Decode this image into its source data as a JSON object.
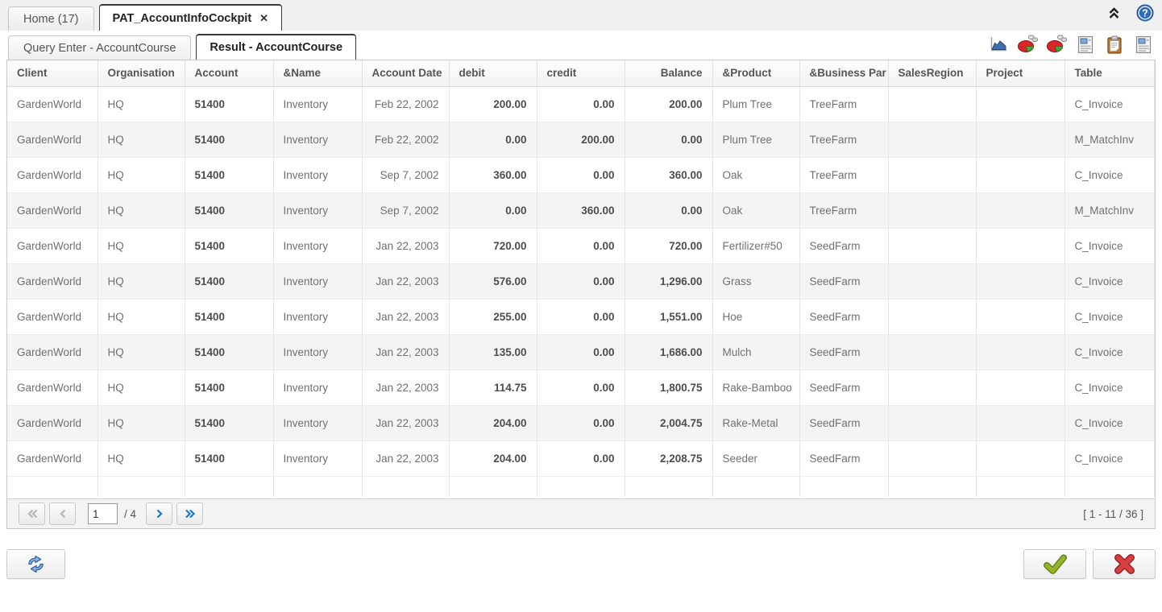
{
  "window_tabs": {
    "home": {
      "label": "Home (17)"
    },
    "active": {
      "label": "PAT_AccountInfoCockpit",
      "close_glyph": "✕"
    }
  },
  "header_icons": {
    "help_glyph": "?"
  },
  "sub_tabs": {
    "query": {
      "label": "Query Enter - AccountCourse"
    },
    "result": {
      "label": "Result - AccountCourse"
    }
  },
  "toolbar_icons": [
    {
      "name": "area-chart-icon"
    },
    {
      "name": "pie-chart-icon"
    },
    {
      "name": "pie-chart-2-icon"
    },
    {
      "name": "report-icon"
    },
    {
      "name": "clipboard-icon"
    },
    {
      "name": "report-2-icon"
    }
  ],
  "table": {
    "columns": [
      {
        "label": "Client"
      },
      {
        "label": "Organisation"
      },
      {
        "label": "Account"
      },
      {
        "label": "&Name"
      },
      {
        "label": "Account Date"
      },
      {
        "label": "debit"
      },
      {
        "label": "credit"
      },
      {
        "label": "Balance"
      },
      {
        "label": "&Product"
      },
      {
        "label": "&Business Par"
      },
      {
        "label": "SalesRegion"
      },
      {
        "label": "Project"
      },
      {
        "label": "Table"
      }
    ],
    "rows": [
      [
        "GardenWorld",
        "HQ",
        "51400",
        "Inventory",
        "Feb 22, 2002",
        "200.00",
        "0.00",
        "200.00",
        "Plum Tree",
        "TreeFarm",
        "",
        "",
        "C_Invoice"
      ],
      [
        "GardenWorld",
        "HQ",
        "51400",
        "Inventory",
        "Feb 22, 2002",
        "0.00",
        "200.00",
        "0.00",
        "Plum Tree",
        "TreeFarm",
        "",
        "",
        "M_MatchInv"
      ],
      [
        "GardenWorld",
        "HQ",
        "51400",
        "Inventory",
        "Sep 7, 2002",
        "360.00",
        "0.00",
        "360.00",
        "Oak",
        "TreeFarm",
        "",
        "",
        "C_Invoice"
      ],
      [
        "GardenWorld",
        "HQ",
        "51400",
        "Inventory",
        "Sep 7, 2002",
        "0.00",
        "360.00",
        "0.00",
        "Oak",
        "TreeFarm",
        "",
        "",
        "M_MatchInv"
      ],
      [
        "GardenWorld",
        "HQ",
        "51400",
        "Inventory",
        "Jan 22, 2003",
        "720.00",
        "0.00",
        "720.00",
        "Fertilizer#50",
        "SeedFarm",
        "",
        "",
        "C_Invoice"
      ],
      [
        "GardenWorld",
        "HQ",
        "51400",
        "Inventory",
        "Jan 22, 2003",
        "576.00",
        "0.00",
        "1,296.00",
        "Grass",
        "SeedFarm",
        "",
        "",
        "C_Invoice"
      ],
      [
        "GardenWorld",
        "HQ",
        "51400",
        "Inventory",
        "Jan 22, 2003",
        "255.00",
        "0.00",
        "1,551.00",
        "Hoe",
        "SeedFarm",
        "",
        "",
        "C_Invoice"
      ],
      [
        "GardenWorld",
        "HQ",
        "51400",
        "Inventory",
        "Jan 22, 2003",
        "135.00",
        "0.00",
        "1,686.00",
        "Mulch",
        "SeedFarm",
        "",
        "",
        "C_Invoice"
      ],
      [
        "GardenWorld",
        "HQ",
        "51400",
        "Inventory",
        "Jan 22, 2003",
        "114.75",
        "0.00",
        "1,800.75",
        "Rake-Bamboo",
        "SeedFarm",
        "",
        "",
        "C_Invoice"
      ],
      [
        "GardenWorld",
        "HQ",
        "51400",
        "Inventory",
        "Jan 22, 2003",
        "204.00",
        "0.00",
        "2,004.75",
        "Rake-Metal",
        "SeedFarm",
        "",
        "",
        "C_Invoice"
      ],
      [
        "GardenWorld",
        "HQ",
        "51400",
        "Inventory",
        "Jan 22, 2003",
        "204.00",
        "0.00",
        "2,208.75",
        "Seeder",
        "SeedFarm",
        "",
        "",
        "C_Invoice"
      ]
    ]
  },
  "pagination": {
    "page_value": "1",
    "of_label": "/ 4",
    "range_label": "[ 1 - 11 / 36 ]"
  },
  "colors": {
    "arrow_enabled_blue": "#1e78c8",
    "arrow_disabled_gray": "#b5b5b5",
    "refresh_blue": "#8fb3e0",
    "refresh_blue_stroke": "#2f5f9e",
    "check_green": "#94b52c",
    "check_green_dark": "#66821a",
    "cancel_red": "#d84040",
    "cancel_red_dark": "#9c2323",
    "pie_red": "#d9262b",
    "pie_green": "#46a636",
    "chart_blue": "#3f6ea8",
    "clipboard_brown": "#bd7a2c",
    "help_blue": "#2f6bb5"
  }
}
